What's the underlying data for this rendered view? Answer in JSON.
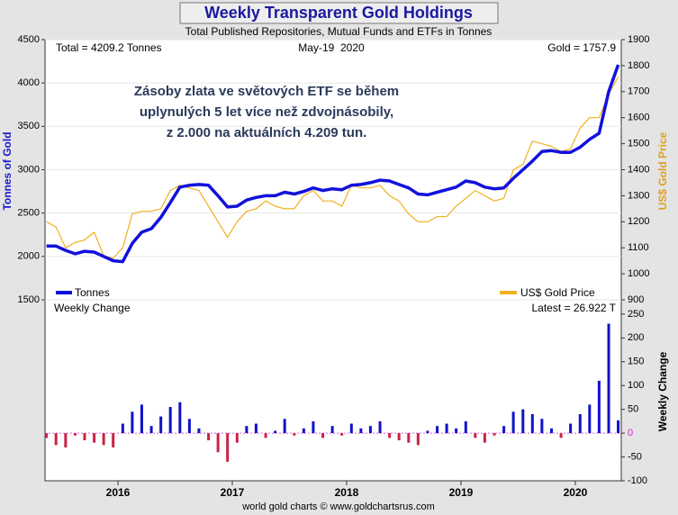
{
  "title": "Weekly Transparent Gold Holdings",
  "footer": "world gold charts © www.goldchartsrus.com",
  "chart_data": [
    {
      "type": "line",
      "subtitle": "Total Published Repositories, Mutual Funds and ETFs in Tonnes",
      "ylabel": "Tonnes of Gold",
      "y2label": "US$ Gold Price",
      "annotations": [
        "Total = 4209.2 Tonnes",
        "May-19  2020",
        "Gold = 1757.9"
      ],
      "note": [
        "Zásoby zlata ve světových ETF se během",
        "uplynulých 5 let více než zdvojnásobily,",
        "z 2.000 na aktuálních 4.209 tun."
      ],
      "x": [
        2015.375,
        2015.458,
        2015.542,
        2015.625,
        2015.708,
        2015.792,
        2015.875,
        2015.958,
        2016.042,
        2016.125,
        2016.208,
        2016.292,
        2016.375,
        2016.458,
        2016.542,
        2016.625,
        2016.708,
        2016.792,
        2016.875,
        2016.958,
        2017.042,
        2017.125,
        2017.208,
        2017.292,
        2017.375,
        2017.458,
        2017.542,
        2017.625,
        2017.708,
        2017.792,
        2017.875,
        2017.958,
        2018.042,
        2018.125,
        2018.208,
        2018.292,
        2018.375,
        2018.458,
        2018.542,
        2018.625,
        2018.708,
        2018.792,
        2018.875,
        2018.958,
        2019.042,
        2019.125,
        2019.208,
        2019.292,
        2019.375,
        2019.458,
        2019.542,
        2019.625,
        2019.708,
        2019.792,
        2019.875,
        2019.958,
        2020.042,
        2020.125,
        2020.208,
        2020.292,
        2020.375
      ],
      "series": [
        {
          "name": "Tonnes",
          "color": "#1111dd",
          "values": [
            2120,
            2120,
            2070,
            2030,
            2060,
            2050,
            2000,
            1950,
            1940,
            2150,
            2280,
            2320,
            2450,
            2620,
            2800,
            2820,
            2830,
            2820,
            2700,
            2570,
            2580,
            2650,
            2680,
            2700,
            2700,
            2740,
            2720,
            2750,
            2790,
            2760,
            2780,
            2770,
            2820,
            2830,
            2850,
            2880,
            2870,
            2830,
            2790,
            2720,
            2710,
            2740,
            2770,
            2800,
            2870,
            2850,
            2800,
            2780,
            2790,
            2900,
            3000,
            3100,
            3210,
            3220,
            3200,
            3200,
            3260,
            3350,
            3420,
            3900,
            4209.2
          ]
        },
        {
          "name": "US$ Gold Price",
          "color": "#f0b020",
          "axis": "y2",
          "values": [
            1200,
            1180,
            1100,
            1120,
            1130,
            1160,
            1070,
            1060,
            1100,
            1230,
            1240,
            1240,
            1250,
            1320,
            1340,
            1330,
            1320,
            1260,
            1200,
            1140,
            1200,
            1240,
            1250,
            1280,
            1260,
            1250,
            1250,
            1300,
            1320,
            1280,
            1280,
            1260,
            1340,
            1330,
            1330,
            1340,
            1300,
            1280,
            1230,
            1200,
            1200,
            1220,
            1220,
            1260,
            1290,
            1320,
            1300,
            1280,
            1290,
            1400,
            1420,
            1510,
            1500,
            1490,
            1470,
            1480,
            1560,
            1600,
            1600,
            1690,
            1757.9
          ]
        }
      ],
      "xlim": [
        2015.362,
        2020.402
      ],
      "ylim": [
        1500,
        4500
      ],
      "yticks": [
        1500,
        2000,
        2500,
        3000,
        3500,
        4000,
        4500
      ],
      "y2lim": [
        900,
        1900
      ],
      "y2ticks": [
        900,
        1000,
        1100,
        1200,
        1300,
        1400,
        1500,
        1600,
        1700,
        1800,
        1900
      ],
      "grid": true
    },
    {
      "type": "bar",
      "title": "Weekly Change",
      "ylabel": "Weekly Change",
      "annotation": "Latest = 26.922 T",
      "x": [
        2015.375,
        2015.458,
        2015.542,
        2015.625,
        2015.708,
        2015.792,
        2015.875,
        2015.958,
        2016.042,
        2016.125,
        2016.208,
        2016.292,
        2016.375,
        2016.458,
        2016.542,
        2016.625,
        2016.708,
        2016.792,
        2016.875,
        2016.958,
        2017.042,
        2017.125,
        2017.208,
        2017.292,
        2017.375,
        2017.458,
        2017.542,
        2017.625,
        2017.708,
        2017.792,
        2017.875,
        2017.958,
        2018.042,
        2018.125,
        2018.208,
        2018.292,
        2018.375,
        2018.458,
        2018.542,
        2018.625,
        2018.708,
        2018.792,
        2018.875,
        2018.958,
        2019.042,
        2019.125,
        2019.208,
        2019.292,
        2019.375,
        2019.458,
        2019.542,
        2019.625,
        2019.708,
        2019.792,
        2019.875,
        2019.958,
        2020.042,
        2020.125,
        2020.208,
        2020.292,
        2020.375
      ],
      "values": [
        -10,
        -25,
        -30,
        -5,
        -15,
        -20,
        -25,
        -30,
        20,
        45,
        60,
        15,
        35,
        55,
        65,
        30,
        10,
        -15,
        -40,
        -60,
        -20,
        15,
        20,
        -10,
        5,
        30,
        -5,
        10,
        25,
        -10,
        15,
        -5,
        20,
        10,
        15,
        25,
        -10,
        -15,
        -20,
        -25,
        5,
        15,
        20,
        10,
        25,
        -10,
        -20,
        -5,
        15,
        45,
        50,
        40,
        30,
        10,
        -10,
        20,
        40,
        60,
        110,
        230,
        26.922
      ],
      "positive_color": "#1111cc",
      "negative_color": "#cc2244",
      "xlim": [
        2015.362,
        2020.402
      ],
      "xticks": [
        2016,
        2017,
        2018,
        2019,
        2020
      ],
      "ylim": [
        -100,
        280
      ],
      "yticks": [
        -100,
        -50,
        0,
        50,
        100,
        150,
        200,
        250
      ]
    }
  ]
}
